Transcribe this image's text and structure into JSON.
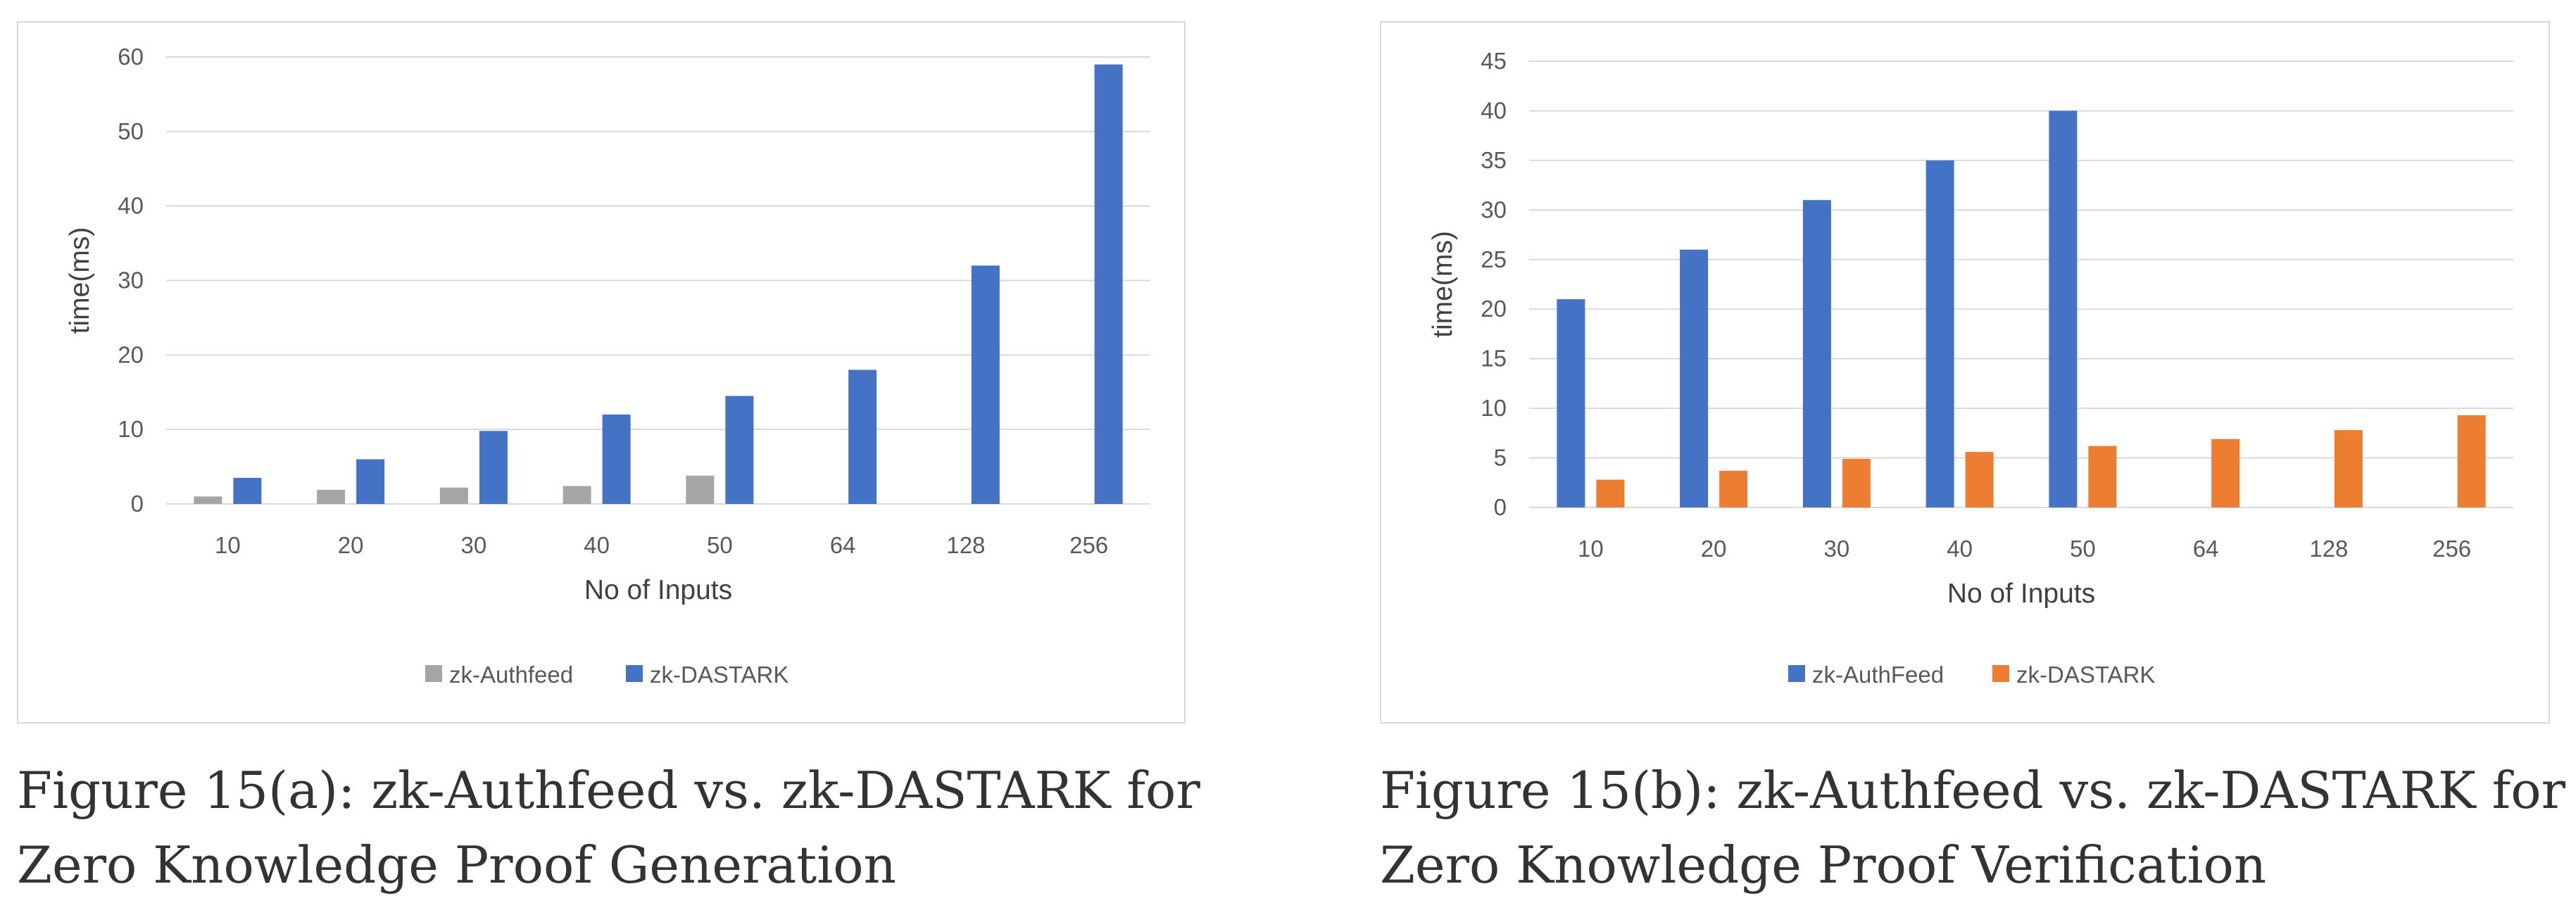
{
  "captions": {
    "a": {
      "line1": "Figure 15(a):  zk-Authfeed vs.  zk-DASTARK for",
      "line2": "Zero Knowledge Proof Generation"
    },
    "b": {
      "line1": "Figure 15(b):  zk-Authfeed vs.  zk-DASTARK for",
      "line2": "Zero Knowledge Proof Verification"
    }
  },
  "chart_data": [
    {
      "type": "bar",
      "title": "",
      "xlabel": "No of Inputs",
      "ylabel": "time(ms)",
      "ylim": [
        0,
        60
      ],
      "yticks": [
        "0",
        "10",
        "20",
        "30",
        "40",
        "50",
        "60"
      ],
      "grid": true,
      "legend": "bottom",
      "categories": [
        "10",
        "20",
        "30",
        "40",
        "50",
        "64",
        "128",
        "256"
      ],
      "series": [
        {
          "name": "zk-Authfeed",
          "color": "#a5a5a5",
          "values": [
            1.0,
            1.9,
            2.2,
            2.4,
            3.8,
            null,
            null,
            null
          ]
        },
        {
          "name": "zk-DASTARK",
          "color": "#4472c4",
          "values": [
            3.5,
            6.0,
            9.8,
            12.0,
            14.5,
            18.0,
            32.0,
            59.0
          ]
        }
      ]
    },
    {
      "type": "bar",
      "title": "",
      "xlabel": "No of Inputs",
      "ylabel": "time(ms)",
      "ylim": [
        0,
        45
      ],
      "yticks": [
        "0",
        "5",
        "10",
        "15",
        "20",
        "25",
        "30",
        "35",
        "40",
        "45"
      ],
      "grid": true,
      "legend": "bottom",
      "categories": [
        "10",
        "20",
        "30",
        "40",
        "50",
        "64",
        "128",
        "256"
      ],
      "series": [
        {
          "name": "zk-AuthFeed",
          "color": "#4472c4",
          "values": [
            21,
            26,
            31,
            35,
            40,
            null,
            null,
            null
          ]
        },
        {
          "name": "zk-DASTARK",
          "color": "#ed7d31",
          "values": [
            2.8,
            3.7,
            4.9,
            5.6,
            6.2,
            6.9,
            7.8,
            9.3
          ]
        }
      ]
    }
  ]
}
